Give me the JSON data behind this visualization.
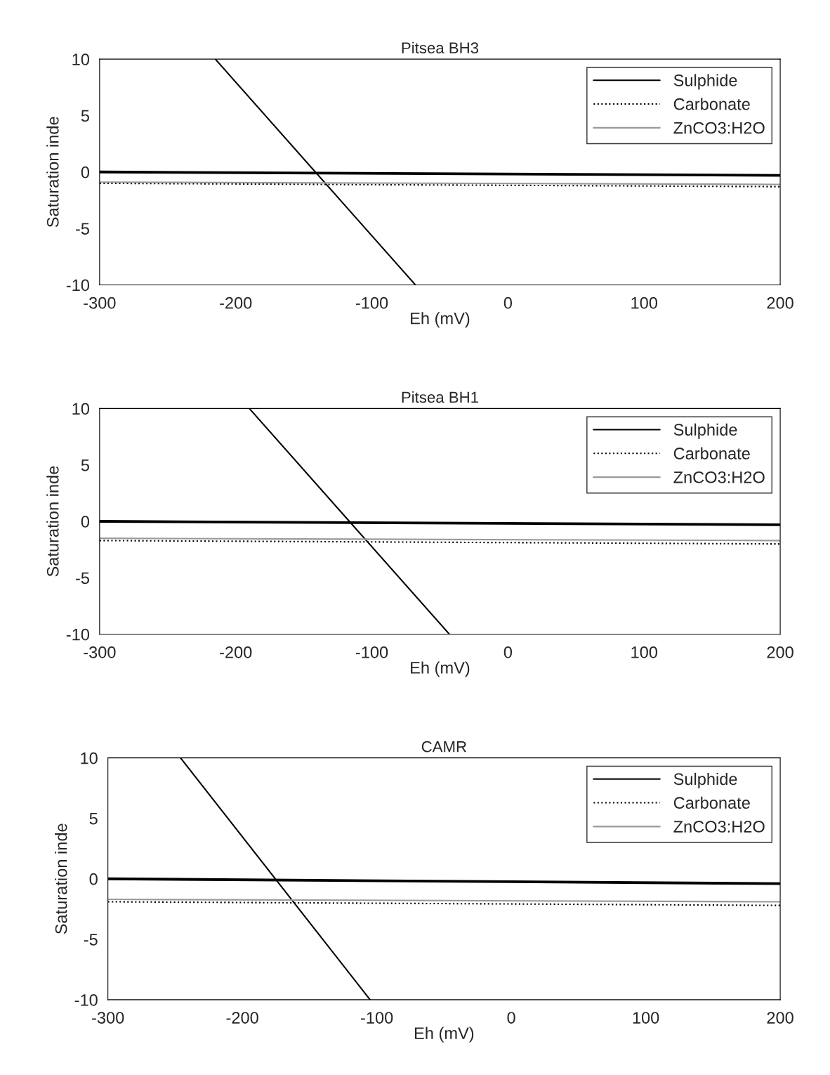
{
  "chart_data": [
    {
      "type": "line",
      "title": "Pitsea BH3",
      "xlabel": "Eh (mV)",
      "ylabel": "Saturation inde",
      "xlim": [
        -300,
        200
      ],
      "ylim": [
        -10,
        10
      ],
      "xticks": [
        -300,
        -200,
        -100,
        0,
        100,
        200
      ],
      "yticks": [
        -10,
        -5,
        0,
        5,
        10
      ],
      "grid": false,
      "legend": "top right",
      "series": [
        {
          "name": "Sulphide",
          "color": "#000000",
          "line_style": "solid",
          "x": [
            -215,
            -68
          ],
          "values": [
            10,
            -10
          ]
        },
        {
          "name": "Carbonate",
          "color": "#000000",
          "line_style": "dotted",
          "x": [
            -300,
            200
          ],
          "values": [
            -1.0,
            -1.3
          ]
        },
        {
          "name": "ZnCO3:H2O",
          "color": "#999999",
          "line_style": "solid",
          "x": [
            -300,
            200
          ],
          "values": [
            -0.9,
            -1.1
          ]
        },
        {
          "color": "#000000",
          "line_style": "solid",
          "x": [
            -300,
            200
          ],
          "values": [
            0,
            -0.3
          ]
        }
      ]
    },
    {
      "type": "line",
      "title": "Pitsea BH1",
      "xlabel": "Eh (mV)",
      "ylabel": "Saturation inde",
      "xlim": [
        -300,
        200
      ],
      "ylim": [
        -10,
        10
      ],
      "xticks": [
        -300,
        -200,
        -100,
        0,
        100,
        200
      ],
      "yticks": [
        -10,
        -5,
        0,
        5,
        10
      ],
      "grid": false,
      "legend": "top right",
      "series": [
        {
          "name": "Sulphide",
          "color": "#000000",
          "line_style": "solid",
          "x": [
            -190,
            -43
          ],
          "values": [
            10,
            -10
          ]
        },
        {
          "name": "Carbonate",
          "color": "#000000",
          "line_style": "dotted",
          "x": [
            -300,
            200
          ],
          "values": [
            -1.7,
            -2.0
          ]
        },
        {
          "name": "ZnCO3:H2O",
          "color": "#999999",
          "line_style": "solid",
          "x": [
            -300,
            200
          ],
          "values": [
            -1.5,
            -1.7
          ]
        },
        {
          "color": "#000000",
          "line_style": "solid",
          "x": [
            -300,
            200
          ],
          "values": [
            0,
            -0.3
          ]
        }
      ]
    },
    {
      "type": "line",
      "title": "CAMR",
      "xlabel": "Eh (mV)",
      "ylabel": "Saturation inde",
      "xlim": [
        -300,
        200
      ],
      "ylim": [
        -10,
        10
      ],
      "xticks": [
        -300,
        -200,
        -100,
        0,
        100,
        200
      ],
      "yticks": [
        -10,
        -5,
        0,
        5,
        10
      ],
      "grid": false,
      "legend": "top right",
      "series": [
        {
          "name": "Sulphide",
          "color": "#000000",
          "line_style": "solid",
          "x": [
            -246,
            -105
          ],
          "values": [
            10,
            -10
          ]
        },
        {
          "name": "Carbonate",
          "color": "#000000",
          "line_style": "dotted",
          "x": [
            -300,
            200
          ],
          "values": [
            -1.9,
            -2.2
          ]
        },
        {
          "name": "ZnCO3:H2O",
          "color": "#999999",
          "line_style": "solid",
          "x": [
            -300,
            200
          ],
          "values": [
            -1.7,
            -1.9
          ]
        },
        {
          "color": "#000000",
          "line_style": "solid",
          "x": [
            -300,
            200
          ],
          "values": [
            0,
            -0.4
          ]
        }
      ]
    }
  ]
}
